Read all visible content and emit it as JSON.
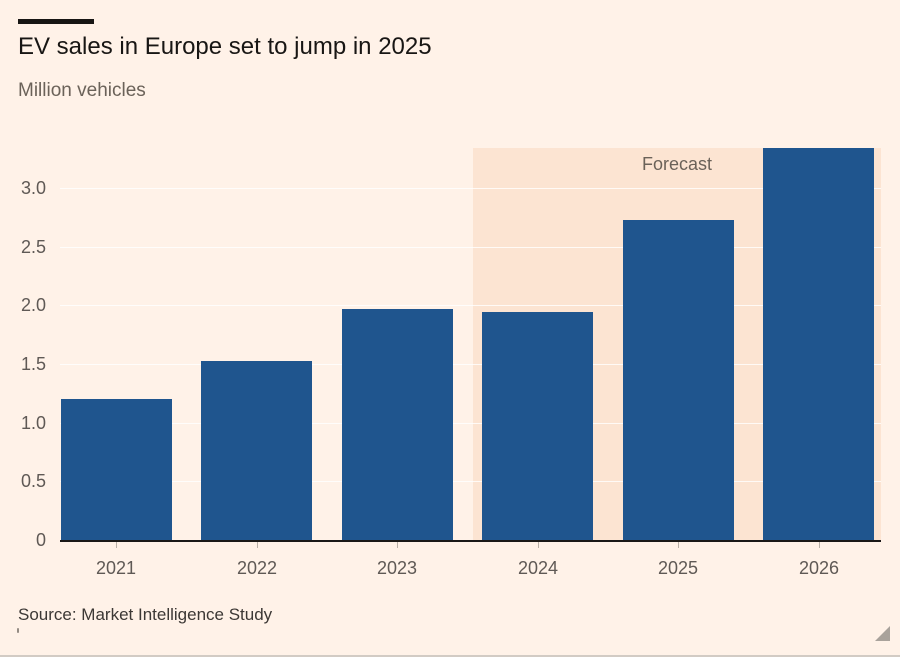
{
  "header": {
    "title": "EV sales in Europe set to jump in 2025",
    "subtitle": "Million vehicles"
  },
  "footer": {
    "source": "Source: Market Intelligence Study"
  },
  "chart_data": {
    "type": "bar",
    "title": "EV sales in Europe set to jump in 2025",
    "units_label": "Million vehicles",
    "categories": [
      "2021",
      "2022",
      "2023",
      "2024",
      "2025",
      "2026"
    ],
    "values": [
      1.2,
      1.53,
      1.97,
      1.94,
      2.73,
      3.34
    ],
    "ytick_values": [
      0,
      0.5,
      1.0,
      1.5,
      2.0,
      2.5,
      3.0
    ],
    "ytick_labels": [
      "0",
      "0.5",
      "1.0",
      "1.5",
      "2.0",
      "2.5",
      "3.0"
    ],
    "ylim": [
      0,
      3.34
    ],
    "grid": "horizontal",
    "legend": "none",
    "forecast_band": {
      "label": "Forecast",
      "start_category": "2024",
      "end_category": "2026"
    },
    "source": "Source: Market Intelligence Study",
    "colors": {
      "background": "#fff2e8",
      "forecast_band": "#fce4d2",
      "bar": "#1f558e",
      "title_text": "#181614",
      "muted_text": "#6b6259",
      "axis_label_text": "#5f5955",
      "axis_line": "#1a1817",
      "gridline": "rgba(255,255,255,0.8)"
    }
  }
}
